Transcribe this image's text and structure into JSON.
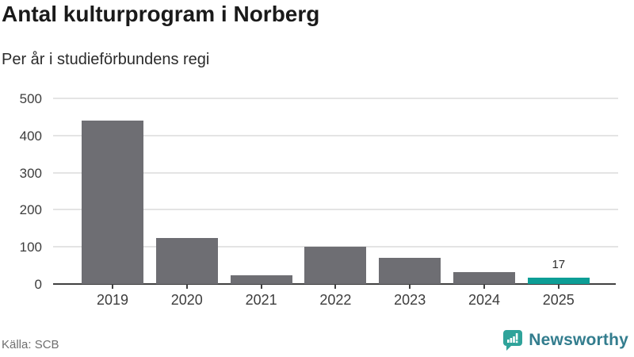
{
  "header": {
    "title": "Antal kulturprogram i Norberg",
    "subtitle": "Per år i studieförbundens regi"
  },
  "footer": {
    "source": "Källa: SCB",
    "logo_text": "Newsworthy"
  },
  "colors": {
    "bar_default": "#6e6e73",
    "bar_highlight": "#0d9e96",
    "gridline": "#e4e4e4",
    "axis": "#414141",
    "tick_text": "#3d3d3d",
    "title_text": "#1a1a1a",
    "source_text": "#6f6f6f",
    "logo_icon": "#2fa39a",
    "logo_text": "#337d8e"
  },
  "chart_data": {
    "type": "bar",
    "title": "Antal kulturprogram i Norberg",
    "subtitle": "Per år i studieförbundens regi",
    "categories": [
      "2019",
      "2020",
      "2021",
      "2022",
      "2023",
      "2024",
      "2025"
    ],
    "values": [
      440,
      123,
      23,
      100,
      71,
      33,
      17
    ],
    "value_labels": [
      null,
      null,
      null,
      null,
      null,
      null,
      "17"
    ],
    "highlight_index": 6,
    "xlabel": "",
    "ylabel": "",
    "ylim": [
      0,
      500
    ],
    "yticks": [
      0,
      100,
      200,
      300,
      400,
      500
    ],
    "grid": true,
    "legend": false,
    "source": "Källa: SCB"
  }
}
